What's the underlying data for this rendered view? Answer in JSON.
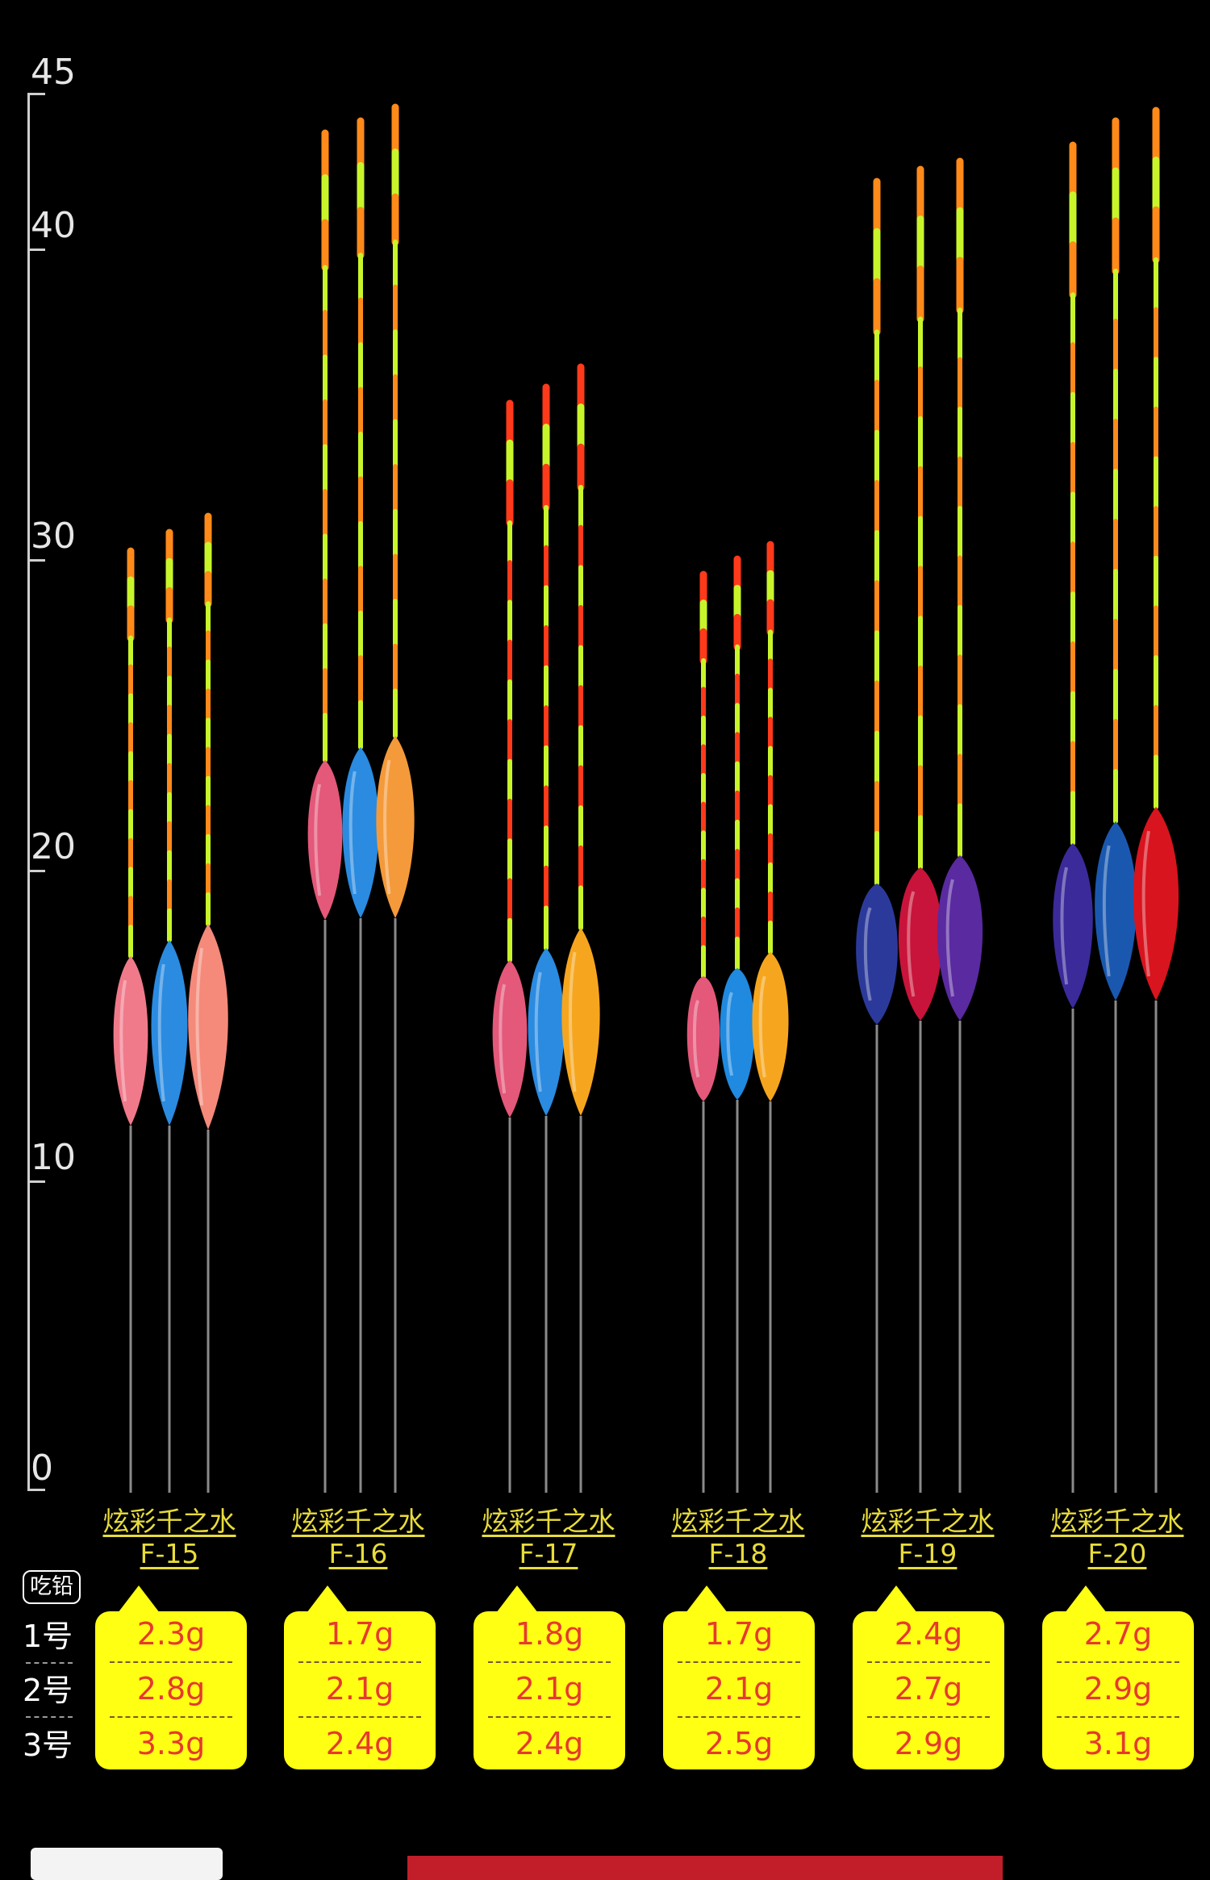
{
  "ruler": {
    "ticks": [
      "45",
      "40",
      "30",
      "20",
      "10",
      "0"
    ]
  },
  "row_header": "吃铅",
  "row_labels": [
    "1号",
    "2号",
    "3号"
  ],
  "colors": {
    "background": "#000000",
    "label_yellow": "#e8dc3a",
    "card_yellow": "#ffff14",
    "value_red": "#e63a2e",
    "footer_red": "#c11e2a"
  },
  "groups": [
    {
      "name": "炫彩千之水",
      "code": "F-15",
      "weights": [
        "2.3g",
        "2.8g",
        "3.3g"
      ]
    },
    {
      "name": "炫彩千之水",
      "code": "F-16",
      "weights": [
        "1.7g",
        "2.1g",
        "2.4g"
      ]
    },
    {
      "name": "炫彩千之水",
      "code": "F-17",
      "weights": [
        "1.8g",
        "2.1g",
        "2.4g"
      ]
    },
    {
      "name": "炫彩千之水",
      "code": "F-18",
      "weights": [
        "1.7g",
        "2.1g",
        "2.5g"
      ]
    },
    {
      "name": "炫彩千之水",
      "code": "F-19",
      "weights": [
        "2.4g",
        "2.7g",
        "2.9g"
      ]
    },
    {
      "name": "炫彩千之水",
      "code": "F-20",
      "weights": [
        "2.7g",
        "2.9g",
        "3.1g"
      ]
    }
  ]
}
